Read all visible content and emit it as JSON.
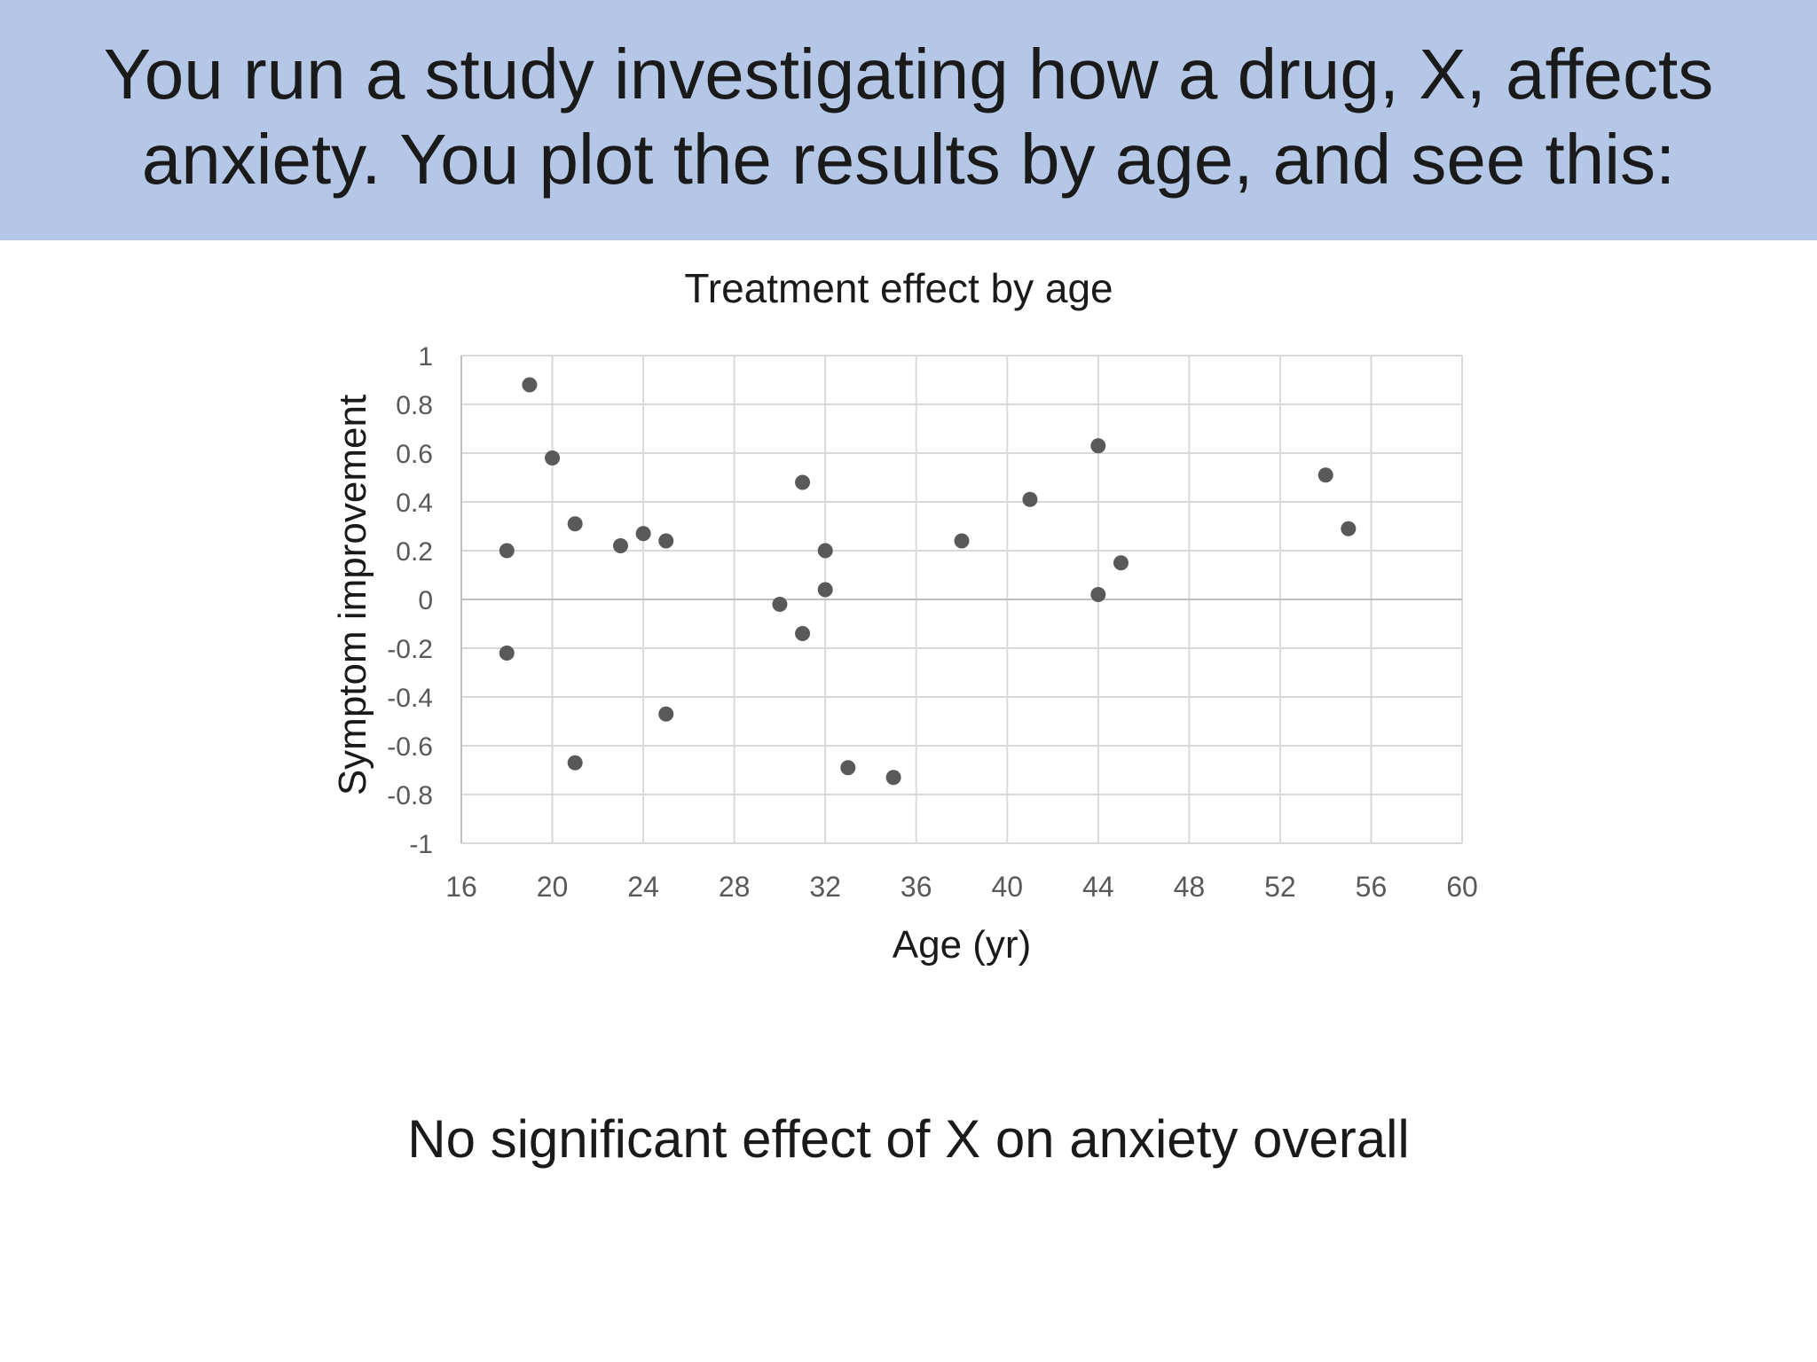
{
  "header": {
    "line1": "You run a study investigating how a drug, X, affects",
    "line2": "anxiety. You plot the results by age, and see this:"
  },
  "conclusion": "No significant effect of X on anxiety overall",
  "colors": {
    "header_band": "#b4c7e7",
    "point": "#595959",
    "grid": "#d9d9d9",
    "zero_line": "#bfbfbf",
    "tick_text": "#595959",
    "title_text": "#1a1a1a"
  },
  "chart_data": {
    "type": "scatter",
    "title": "Treatment effect by age",
    "xlabel": "Age (yr)",
    "ylabel": "Symptom improvement",
    "xlim": [
      16,
      60
    ],
    "ylim": [
      -1,
      1
    ],
    "grid": true,
    "legend": "none",
    "x_ticks": [
      "16",
      "20",
      "24",
      "28",
      "32",
      "36",
      "40",
      "44",
      "48",
      "52",
      "56",
      "60"
    ],
    "y_ticks": [
      "1",
      "0.8",
      "0.6",
      "0.4",
      "0.2",
      "0",
      "-0.2",
      "-0.4",
      "-0.6",
      "-0.8",
      "-1"
    ],
    "points": [
      {
        "x": 18,
        "y": 0.2
      },
      {
        "x": 18,
        "y": -0.22
      },
      {
        "x": 19,
        "y": 0.88
      },
      {
        "x": 20,
        "y": 0.58
      },
      {
        "x": 21,
        "y": 0.31
      },
      {
        "x": 21,
        "y": -0.67
      },
      {
        "x": 23,
        "y": 0.22
      },
      {
        "x": 24,
        "y": 0.27
      },
      {
        "x": 25,
        "y": 0.24
      },
      {
        "x": 25,
        "y": -0.47
      },
      {
        "x": 30,
        "y": -0.02
      },
      {
        "x": 31,
        "y": 0.48
      },
      {
        "x": 31,
        "y": -0.14
      },
      {
        "x": 32,
        "y": 0.2
      },
      {
        "x": 32,
        "y": 0.04
      },
      {
        "x": 33,
        "y": -0.69
      },
      {
        "x": 35,
        "y": -0.73
      },
      {
        "x": 38,
        "y": 0.24
      },
      {
        "x": 41,
        "y": 0.41
      },
      {
        "x": 44,
        "y": 0.63
      },
      {
        "x": 44,
        "y": 0.02
      },
      {
        "x": 45,
        "y": 0.15
      },
      {
        "x": 54,
        "y": 0.51
      },
      {
        "x": 55,
        "y": 0.29
      }
    ]
  }
}
